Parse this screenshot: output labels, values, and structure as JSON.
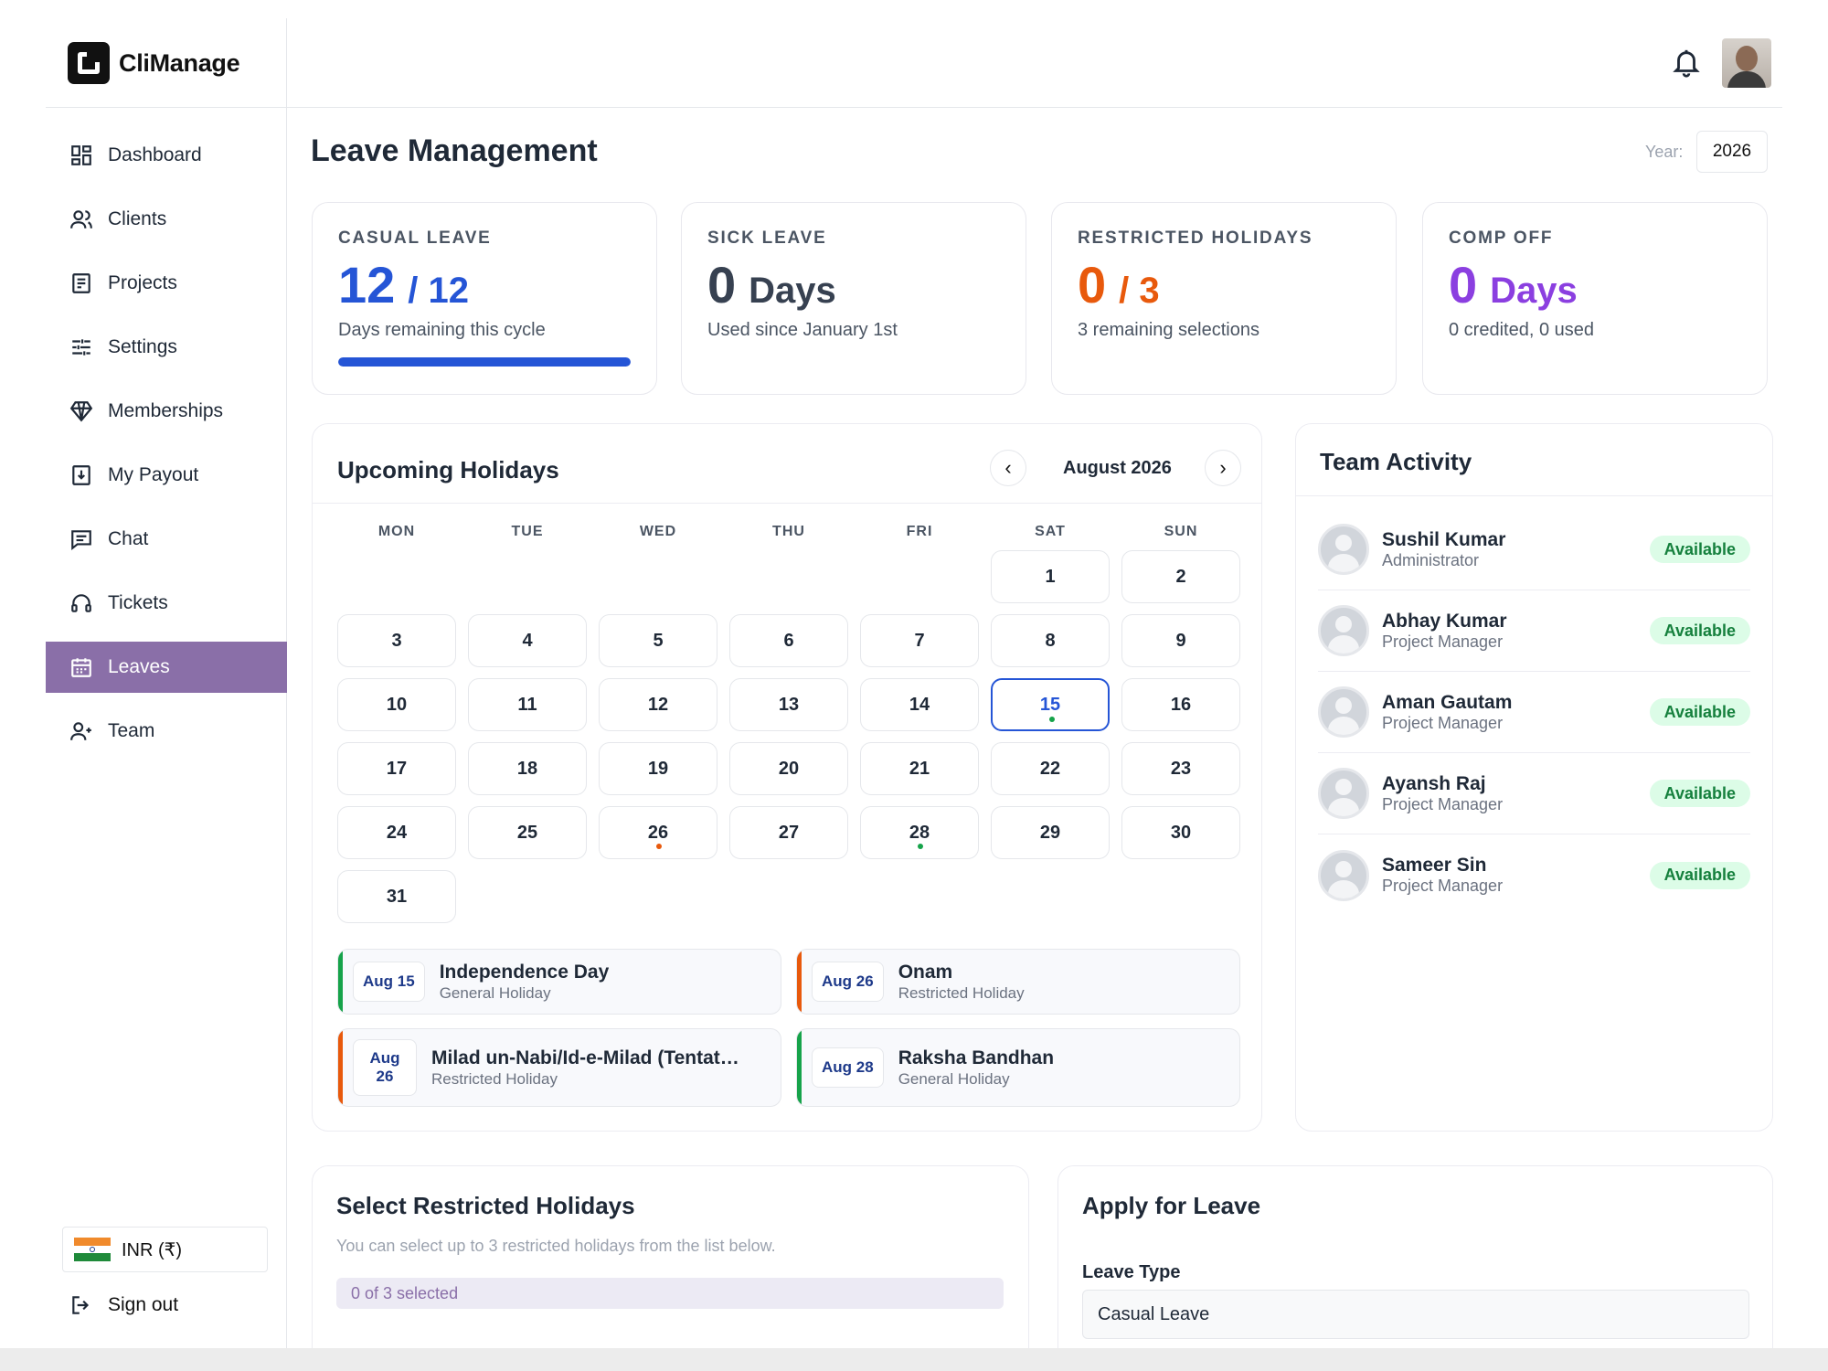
{
  "brand": {
    "name": "CliManage"
  },
  "sidebar": {
    "items": [
      {
        "label": "Dashboard",
        "icon": "dashboard-icon"
      },
      {
        "label": "Clients",
        "icon": "users-icon"
      },
      {
        "label": "Projects",
        "icon": "projects-icon"
      },
      {
        "label": "Settings",
        "icon": "sliders-icon"
      },
      {
        "label": "Memberships",
        "icon": "diamond-icon"
      },
      {
        "label": "My Payout",
        "icon": "payout-icon"
      },
      {
        "label": "Chat",
        "icon": "chat-icon"
      },
      {
        "label": "Tickets",
        "icon": "headset-icon"
      },
      {
        "label": "Leaves",
        "icon": "calendar-icon",
        "active": true
      },
      {
        "label": "Team",
        "icon": "team-icon"
      }
    ],
    "currency": "INR (₹)",
    "sign_out": "Sign out"
  },
  "page": {
    "title": "Leave Management",
    "year_label": "Year:",
    "year": "2026"
  },
  "stats": [
    {
      "label": "CASUAL LEAVE",
      "value": "12",
      "suffix": "/ 12",
      "sub": "Days remaining this cycle",
      "color": "#2555d6",
      "progress": 1.0
    },
    {
      "label": "SICK LEAVE",
      "value": "0",
      "suffix": "Days",
      "sub": "Used since January 1st",
      "color": "#374151"
    },
    {
      "label": "RESTRICTED HOLIDAYS",
      "value": "0",
      "suffix": "/ 3",
      "sub": "3 remaining selections",
      "color": "#e8590c"
    },
    {
      "label": "COMP OFF",
      "value": "0",
      "suffix": "Days",
      "sub": "0 credited, 0 used",
      "color": "#8b3fe0"
    }
  ],
  "holidays": {
    "title": "Upcoming Holidays",
    "month": "August 2026",
    "weekdays": [
      "MON",
      "TUE",
      "WED",
      "THU",
      "FRI",
      "SAT",
      "SUN"
    ],
    "days": [
      "1",
      "2",
      "3",
      "4",
      "5",
      "6",
      "7",
      "8",
      "9",
      "10",
      "11",
      "12",
      "13",
      "14",
      "15",
      "16",
      "17",
      "18",
      "19",
      "20",
      "21",
      "22",
      "23",
      "24",
      "25",
      "26",
      "27",
      "28",
      "29",
      "30",
      "31"
    ],
    "today": "15",
    "list": [
      {
        "date": "Aug 15",
        "name": "Independence Day",
        "type": "General Holiday",
        "color": "#16a34a"
      },
      {
        "date": "Aug 26",
        "name": "Onam",
        "type": "Restricted Holiday",
        "color": "#e8590c"
      },
      {
        "date_line1": "Aug",
        "date_line2": "26",
        "name": "Milad un-Nabi/Id-e-Milad (Tentat…",
        "type": "Restricted Holiday",
        "color": "#e8590c"
      },
      {
        "date": "Aug 28",
        "name": "Raksha Bandhan",
        "type": "General Holiday",
        "color": "#16a34a"
      }
    ]
  },
  "team": {
    "title": "Team Activity",
    "members": [
      {
        "name": "Sushil Kumar",
        "role": "Administrator",
        "status": "Available"
      },
      {
        "name": "Abhay Kumar",
        "role": "Project Manager",
        "status": "Available"
      },
      {
        "name": "Aman Gautam",
        "role": "Project Manager",
        "status": "Available"
      },
      {
        "name": "Ayansh Raj",
        "role": "Project Manager",
        "status": "Available"
      },
      {
        "name": "Sameer Sin",
        "role": "Project Manager",
        "status": "Available"
      }
    ]
  },
  "restricted": {
    "title": "Select Restricted Holidays",
    "description": "You can select up to 3 restricted holidays from the list below.",
    "selected": "0 of 3 selected"
  },
  "apply": {
    "title": "Apply for Leave",
    "leave_type_label": "Leave Type",
    "leave_type_value": "Casual Leave"
  }
}
